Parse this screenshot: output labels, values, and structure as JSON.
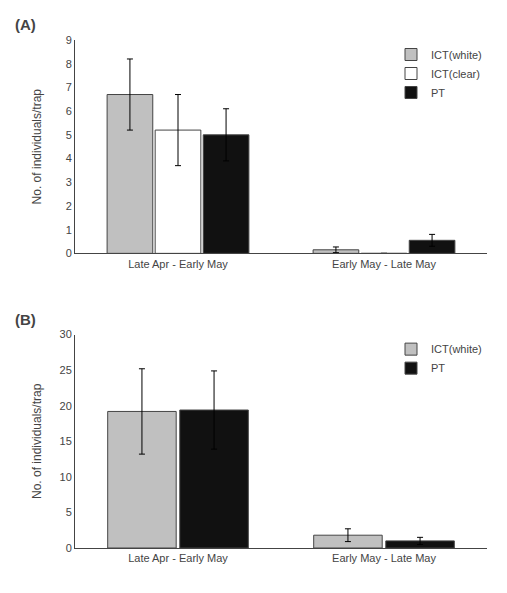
{
  "chart_data": [
    {
      "type": "bar",
      "title": "(A)",
      "categories": [
        "Late Apr - Early May",
        "Early May - Late May"
      ],
      "series": [
        {
          "name": "ICT(white)",
          "color": "#c0c0c0",
          "values": [
            6.7,
            0.15
          ],
          "errors": [
            1.5,
            0.12
          ]
        },
        {
          "name": "ICT(clear)",
          "color": "#ffffff",
          "values": [
            5.2,
            0.0
          ],
          "errors": [
            1.5,
            0.0
          ]
        },
        {
          "name": "PT",
          "color": "#111111",
          "values": [
            5.0,
            0.55
          ],
          "errors": [
            1.1,
            0.25
          ]
        }
      ],
      "ylabel": "No. of individuals/trap",
      "ylim": [
        0,
        9
      ],
      "yticks": [
        0,
        1,
        2,
        3,
        4,
        5,
        6,
        7,
        8,
        9
      ],
      "grid": false,
      "legend": "upper right"
    },
    {
      "type": "bar",
      "title": "(B)",
      "categories": [
        "Late Apr - Early May",
        "Early May - Late May"
      ],
      "series": [
        {
          "name": "ICT(white)",
          "color": "#c0c0c0",
          "values": [
            19.2,
            1.8
          ],
          "errors": [
            6.0,
            0.9
          ]
        },
        {
          "name": "PT",
          "color": "#111111",
          "values": [
            19.4,
            1.0
          ],
          "errors": [
            5.5,
            0.5
          ]
        }
      ],
      "ylabel": "No. of individuals/trap",
      "ylim": [
        0,
        30
      ],
      "yticks": [
        0,
        5,
        10,
        15,
        20,
        25,
        30
      ],
      "grid": false,
      "legend": "upper right"
    }
  ]
}
